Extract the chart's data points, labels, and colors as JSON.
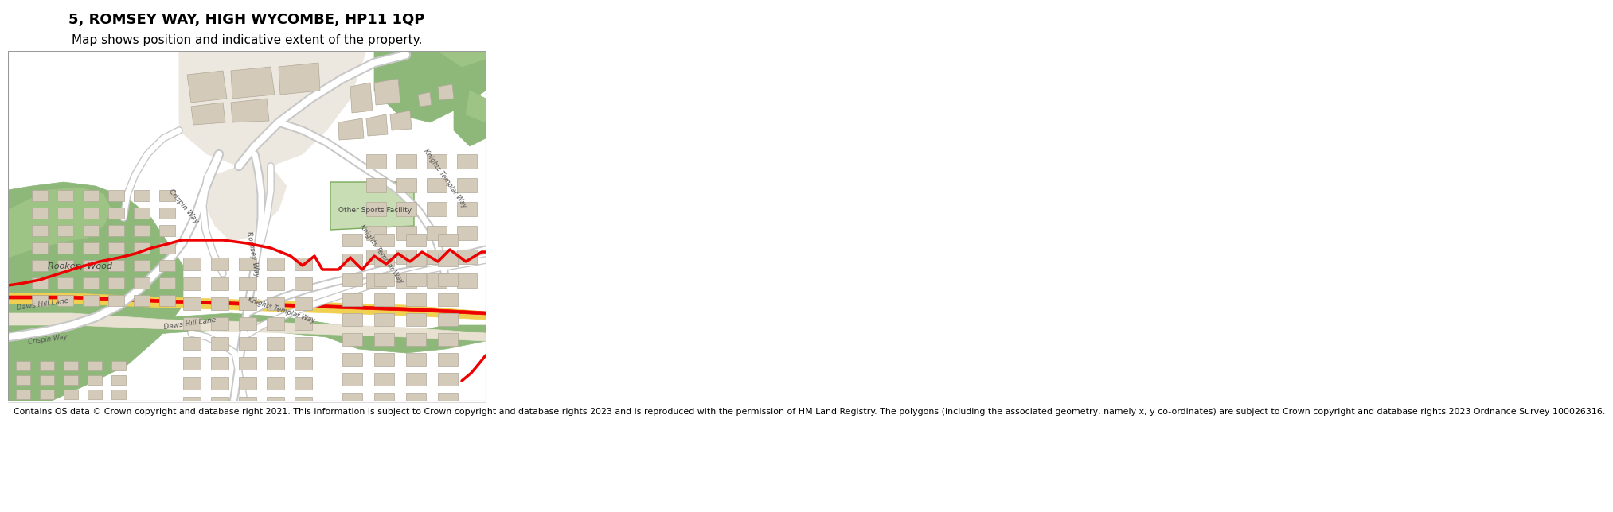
{
  "title_line1": "5, ROMSEY WAY, HIGH WYCOMBE, HP11 1QP",
  "title_line2": "Map shows position and indicative extent of the property.",
  "footer_text": "Contains OS data © Crown copyright and database right 2021. This information is subject to Crown copyright and database rights 2023 and is reproduced with the permission of HM Land Registry. The polygons (including the associated geometry, namely x, y co-ordinates) are subject to Crown copyright and database rights 2023 Ordnance Survey 100026316.",
  "bg_color": "#f0ece3",
  "green_dark": "#7aaa5a",
  "green_mid": "#8db87a",
  "green_pale": "#9ec485",
  "sports_fill": "#c8ddb4",
  "sports_stroke": "#7aaa5a",
  "road_fill": "#ffffff",
  "road_stroke": "#c8c8c8",
  "building_fill": "#d4caba",
  "building_stroke": "#b0a898",
  "red": "#ee0000",
  "yellow": "#f0d050",
  "footer_bg": "#ffffff",
  "header_bg": "#ffffff",
  "tan": "#e8e0d0",
  "light_tan": "#ede8df"
}
